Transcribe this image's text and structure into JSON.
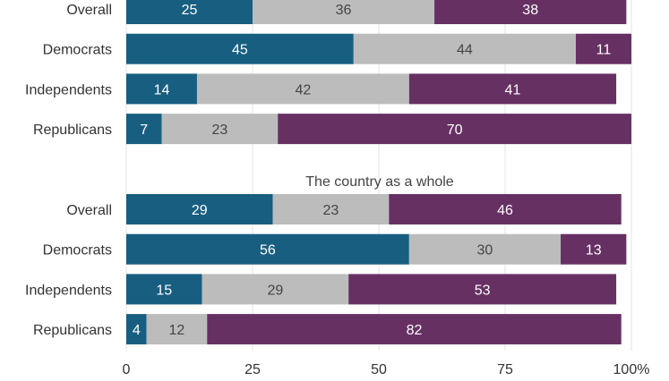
{
  "chart_data": {
    "type": "bar",
    "orientation": "horizontal",
    "stacked": true,
    "xlim": [
      0,
      100
    ],
    "x_ticks": [
      "0",
      "25",
      "50",
      "75",
      "100%"
    ],
    "grid": "vertical",
    "colors": [
      "#185e80",
      "#bcbcbc",
      "#673063"
    ],
    "label_colors": [
      "#ffffff",
      "#444444",
      "#ffffff"
    ],
    "panels": [
      {
        "title": "",
        "categories": [
          "Overall",
          "Democrats",
          "Independents",
          "Republicans"
        ],
        "series": [
          {
            "values": [
              25,
              45,
              14,
              7
            ]
          },
          {
            "values": [
              36,
              44,
              42,
              23
            ]
          },
          {
            "values": [
              38,
              11,
              41,
              70
            ]
          }
        ]
      },
      {
        "title": "The country as a whole",
        "categories": [
          "Overall",
          "Democrats",
          "Independents",
          "Republicans"
        ],
        "series": [
          {
            "values": [
              29,
              56,
              15,
              4
            ]
          },
          {
            "values": [
              23,
              30,
              29,
              12
            ]
          },
          {
            "values": [
              46,
              13,
              53,
              82
            ]
          }
        ]
      }
    ]
  }
}
